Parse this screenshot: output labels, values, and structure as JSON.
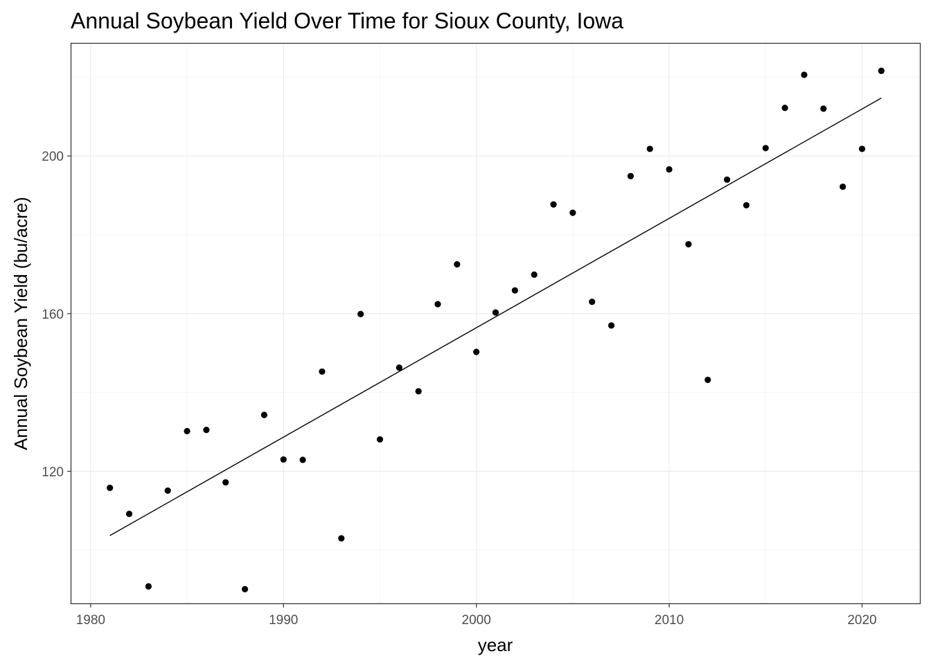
{
  "chart_data": {
    "type": "scatter",
    "title": "Annual Soybean Yield Over Time for Sioux County, Iowa",
    "xlabel": "year",
    "ylabel": "Annual Soybean Yield (bu/acre)",
    "x_ticks": [
      1980,
      1990,
      2000,
      2010,
      2020
    ],
    "y_ticks": [
      120,
      160,
      200
    ],
    "xlim": [
      1979,
      2023
    ],
    "ylim": [
      86.5,
      228.5
    ],
    "grid": true,
    "legend": "none",
    "series": [
      {
        "type": "scatter",
        "x": [
          1981,
          1982,
          1983,
          1984,
          1985,
          1986,
          1987,
          1988,
          1989,
          1990,
          1991,
          1992,
          1993,
          1994,
          1995,
          1996,
          1997,
          1998,
          1999,
          2000,
          2001,
          2002,
          2003,
          2004,
          2005,
          2006,
          2007,
          2008,
          2009,
          2010,
          2011,
          2012,
          2013,
          2014,
          2015,
          2016,
          2017,
          2018,
          2019,
          2020,
          2021
        ],
        "y": [
          115.8,
          109.2,
          90.8,
          115.1,
          130.2,
          130.5,
          117.2,
          90.1,
          134.3,
          123.0,
          122.9,
          145.3,
          103.0,
          159.9,
          128.1,
          146.3,
          140.3,
          162.4,
          172.5,
          150.3,
          160.3,
          165.9,
          169.9,
          187.7,
          185.6,
          163.0,
          157.0,
          194.9,
          201.8,
          196.6,
          177.6,
          143.2,
          194.0,
          187.5,
          202.0,
          212.2,
          220.6,
          212.0,
          192.2,
          201.8,
          221.6
        ]
      },
      {
        "type": "line",
        "x": [
          1981,
          2021
        ],
        "y": [
          103.7,
          214.7
        ]
      }
    ]
  },
  "colors": {
    "points": "#000000",
    "trend_line": "#000000",
    "grid_major": "#ebebeb",
    "grid_minor": "#f5f5f5",
    "panel_border": "#333333",
    "tick_text": "#4d4d4d"
  }
}
